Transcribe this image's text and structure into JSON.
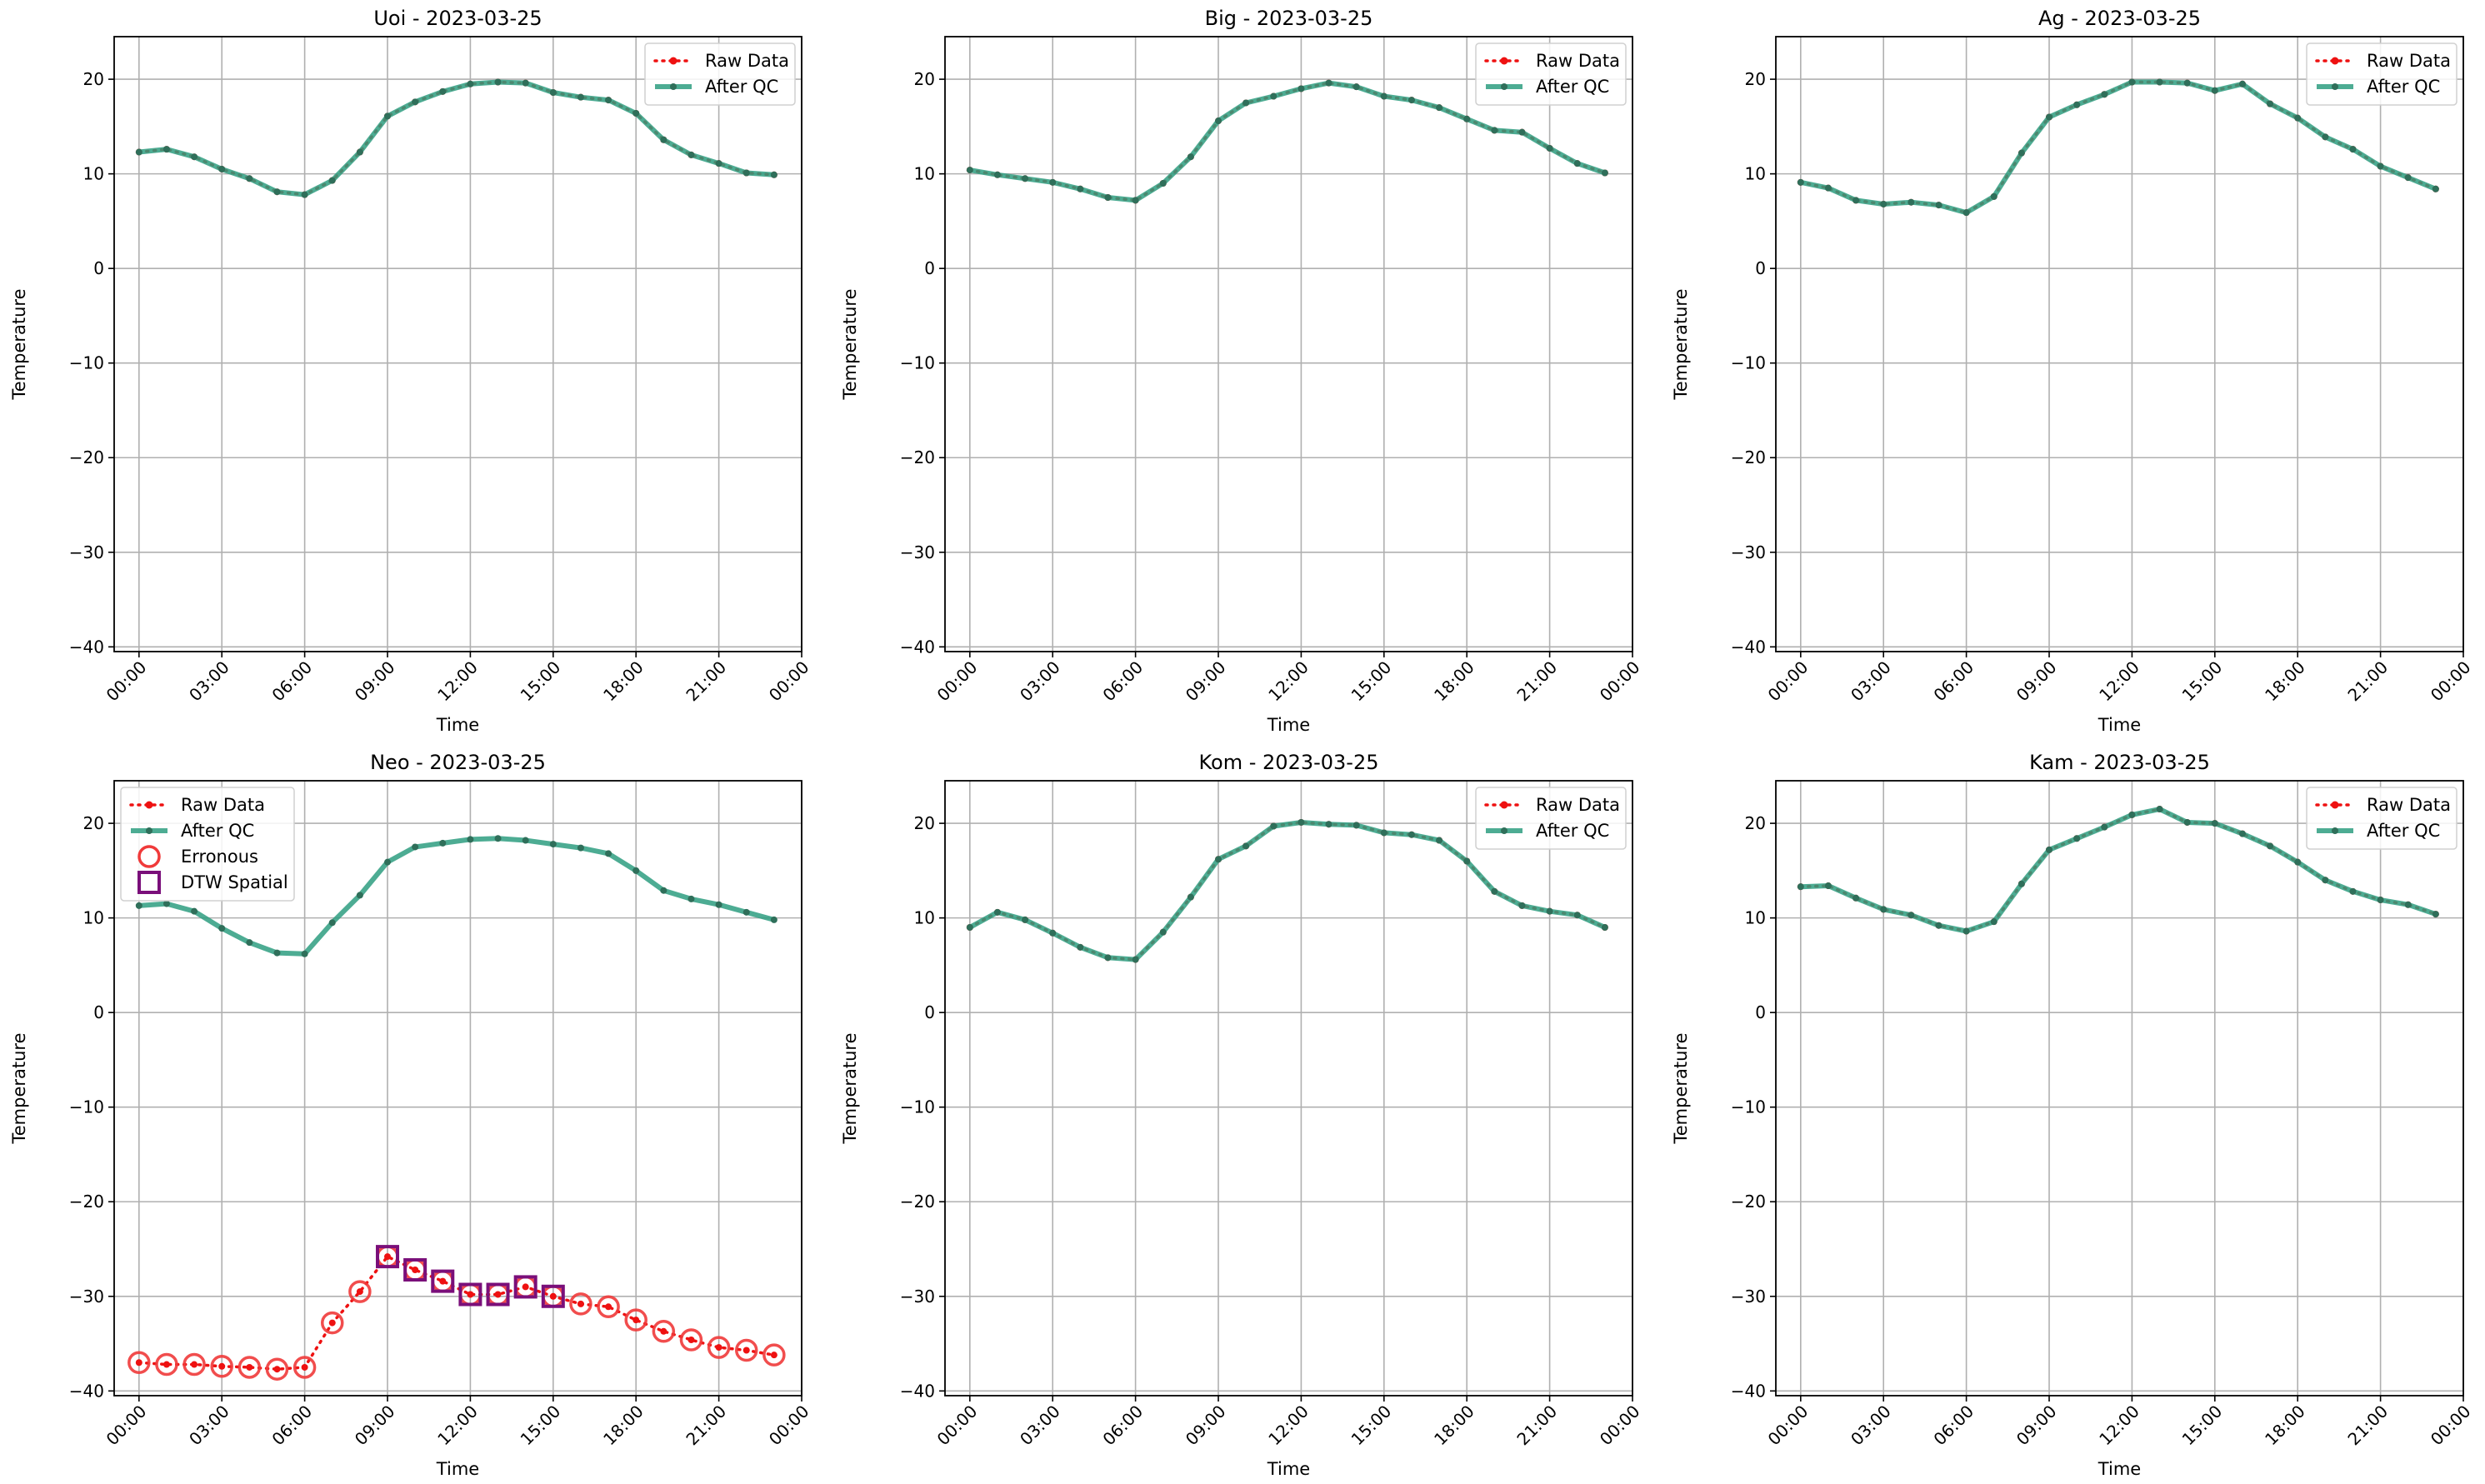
{
  "figure": {
    "colors": {
      "raw": "#ee1111",
      "qc": "#2e9e80",
      "qc_marker": "#2f6f5a",
      "erroneous": "#f03a3a",
      "dtw": "#7a0f7a",
      "grid": "#b0b0b0"
    }
  },
  "chart_data": [
    {
      "type": "line",
      "title": "Uoi - 2023-03-25",
      "xlabel": "Time",
      "ylabel": "Temperature",
      "xlim": [
        -0.9,
        24.0
      ],
      "ylim": [
        -40.5,
        24.5
      ],
      "x_ticks": [
        0,
        3,
        6,
        9,
        12,
        15,
        18,
        21,
        24
      ],
      "x_tick_labels": [
        "00:00",
        "03:00",
        "06:00",
        "09:00",
        "12:00",
        "15:00",
        "18:00",
        "21:00",
        "00:00"
      ],
      "y_ticks": [
        20,
        10,
        0,
        -10,
        -20,
        -30,
        -40
      ],
      "y_tick_labels": [
        "20",
        "10",
        "0",
        "−10",
        "−20",
        "−30",
        "−40"
      ],
      "grid": true,
      "legend": {
        "position": "top-right",
        "entries": [
          "Raw Data",
          "After QC"
        ]
      },
      "x": [
        0,
        1,
        2,
        3,
        4,
        5,
        6,
        7,
        8,
        9,
        10,
        11,
        12,
        13,
        14,
        15,
        16,
        17,
        18,
        19,
        20,
        21,
        22,
        23
      ],
      "series": [
        {
          "name": "Raw Data",
          "style": "dotted",
          "values": [
            12.3,
            12.6,
            11.8,
            10.5,
            9.5,
            8.1,
            7.8,
            9.3,
            12.3,
            16.1,
            17.6,
            18.7,
            19.5,
            19.7,
            19.6,
            18.6,
            18.1,
            17.8,
            16.4,
            13.6,
            12.0,
            11.1,
            10.1,
            9.9
          ]
        },
        {
          "name": "After QC",
          "style": "solid",
          "values": [
            12.3,
            12.6,
            11.8,
            10.5,
            9.5,
            8.1,
            7.8,
            9.3,
            12.3,
            16.1,
            17.6,
            18.7,
            19.5,
            19.7,
            19.6,
            18.6,
            18.1,
            17.8,
            16.4,
            13.6,
            12.0,
            11.1,
            10.1,
            9.9
          ]
        }
      ]
    },
    {
      "type": "line",
      "title": "Big - 2023-03-25",
      "xlabel": "Time",
      "ylabel": "Temperature",
      "xlim": [
        -0.9,
        24.0
      ],
      "ylim": [
        -40.5,
        24.5
      ],
      "x_ticks": [
        0,
        3,
        6,
        9,
        12,
        15,
        18,
        21,
        24
      ],
      "x_tick_labels": [
        "00:00",
        "03:00",
        "06:00",
        "09:00",
        "12:00",
        "15:00",
        "18:00",
        "21:00",
        "00:00"
      ],
      "y_ticks": [
        20,
        10,
        0,
        -10,
        -20,
        -30,
        -40
      ],
      "y_tick_labels": [
        "20",
        "10",
        "0",
        "−10",
        "−20",
        "−30",
        "−40"
      ],
      "grid": true,
      "legend": {
        "position": "top-right",
        "entries": [
          "Raw Data",
          "After QC"
        ]
      },
      "x": [
        0,
        1,
        2,
        3,
        4,
        5,
        6,
        7,
        8,
        9,
        10,
        11,
        12,
        13,
        14,
        15,
        16,
        17,
        18,
        19,
        20,
        21,
        22,
        23
      ],
      "series": [
        {
          "name": "Raw Data",
          "style": "dotted",
          "values": [
            10.4,
            9.9,
            9.5,
            9.1,
            8.4,
            7.5,
            7.2,
            9.0,
            11.8,
            15.6,
            17.5,
            18.2,
            19.0,
            19.6,
            19.2,
            18.2,
            17.8,
            17.0,
            15.8,
            14.6,
            14.4,
            12.7,
            11.1,
            10.1
          ]
        },
        {
          "name": "After QC",
          "style": "solid",
          "values": [
            10.4,
            9.9,
            9.5,
            9.1,
            8.4,
            7.5,
            7.2,
            9.0,
            11.8,
            15.6,
            17.5,
            18.2,
            19.0,
            19.6,
            19.2,
            18.2,
            17.8,
            17.0,
            15.8,
            14.6,
            14.4,
            12.7,
            11.1,
            10.1
          ]
        }
      ]
    },
    {
      "type": "line",
      "title": "Ag - 2023-03-25",
      "xlabel": "Time",
      "ylabel": "Temperature",
      "xlim": [
        -0.9,
        24.0
      ],
      "ylim": [
        -40.5,
        24.5
      ],
      "x_ticks": [
        0,
        3,
        6,
        9,
        12,
        15,
        18,
        21,
        24
      ],
      "x_tick_labels": [
        "00:00",
        "03:00",
        "06:00",
        "09:00",
        "12:00",
        "15:00",
        "18:00",
        "21:00",
        "00:00"
      ],
      "y_ticks": [
        20,
        10,
        0,
        -10,
        -20,
        -30,
        -40
      ],
      "y_tick_labels": [
        "20",
        "10",
        "0",
        "−10",
        "−20",
        "−30",
        "−40"
      ],
      "grid": true,
      "legend": {
        "position": "top-right",
        "entries": [
          "Raw Data",
          "After QC"
        ]
      },
      "x": [
        0,
        1,
        2,
        3,
        4,
        5,
        6,
        7,
        8,
        9,
        10,
        11,
        12,
        13,
        14,
        15,
        16,
        17,
        18,
        19,
        20,
        21,
        22,
        23
      ],
      "series": [
        {
          "name": "Raw Data",
          "style": "dotted",
          "values": [
            9.1,
            8.5,
            7.2,
            6.8,
            7.0,
            6.7,
            5.9,
            7.6,
            12.2,
            16.0,
            17.3,
            18.4,
            19.7,
            19.7,
            19.6,
            18.8,
            19.5,
            17.4,
            15.9,
            13.9,
            12.6,
            10.8,
            9.6,
            8.4
          ]
        },
        {
          "name": "After QC",
          "style": "solid",
          "values": [
            9.1,
            8.5,
            7.2,
            6.8,
            7.0,
            6.7,
            5.9,
            7.6,
            12.2,
            16.0,
            17.3,
            18.4,
            19.7,
            19.7,
            19.6,
            18.8,
            19.5,
            17.4,
            15.9,
            13.9,
            12.6,
            10.8,
            9.6,
            8.4
          ]
        }
      ]
    },
    {
      "type": "line",
      "title": "Neo - 2023-03-25",
      "xlabel": "Time",
      "ylabel": "Temperature",
      "xlim": [
        -0.9,
        24.0
      ],
      "ylim": [
        -40.5,
        24.5
      ],
      "x_ticks": [
        0,
        3,
        6,
        9,
        12,
        15,
        18,
        21,
        24
      ],
      "x_tick_labels": [
        "00:00",
        "03:00",
        "06:00",
        "09:00",
        "12:00",
        "15:00",
        "18:00",
        "21:00",
        "00:00"
      ],
      "y_ticks": [
        20,
        10,
        0,
        -10,
        -20,
        -30,
        -40
      ],
      "y_tick_labels": [
        "20",
        "10",
        "0",
        "−10",
        "−20",
        "−30",
        "−40"
      ],
      "grid": true,
      "legend": {
        "position": "top-left",
        "entries": [
          "Raw Data",
          "After QC",
          "Erronous",
          "DTW Spatial"
        ]
      },
      "x": [
        0,
        1,
        2,
        3,
        4,
        5,
        6,
        7,
        8,
        9,
        10,
        11,
        12,
        13,
        14,
        15,
        16,
        17,
        18,
        19,
        20,
        21,
        22,
        23
      ],
      "series": [
        {
          "name": "Raw Data",
          "style": "dotted",
          "values": [
            -37.0,
            -37.2,
            -37.2,
            -37.4,
            -37.5,
            -37.7,
            -37.5,
            -32.8,
            -29.5,
            -25.8,
            -27.2,
            -28.4,
            -29.8,
            -29.8,
            -29.0,
            -30.0,
            -30.8,
            -31.1,
            -32.5,
            -33.7,
            -34.6,
            -35.4,
            -35.7,
            -36.2
          ]
        },
        {
          "name": "After QC",
          "style": "solid",
          "values": [
            11.3,
            11.5,
            10.7,
            8.9,
            7.4,
            6.3,
            6.2,
            9.5,
            12.4,
            15.9,
            17.5,
            17.9,
            18.3,
            18.4,
            18.2,
            17.8,
            17.4,
            16.8,
            15.0,
            12.9,
            12.0,
            11.4,
            10.6,
            9.8
          ]
        },
        {
          "name": "Erronous",
          "style": "circle-markers",
          "x": [
            0,
            1,
            2,
            3,
            4,
            5,
            6,
            7,
            8,
            9,
            10,
            11,
            12,
            13,
            14,
            15,
            16,
            17,
            18,
            19,
            20,
            21,
            22,
            23
          ],
          "values": [
            -37.0,
            -37.2,
            -37.2,
            -37.4,
            -37.5,
            -37.7,
            -37.5,
            -32.8,
            -29.5,
            -25.8,
            -27.2,
            -28.4,
            -29.8,
            -29.8,
            -29.0,
            -30.0,
            -30.8,
            -31.1,
            -32.5,
            -33.7,
            -34.6,
            -35.4,
            -35.7,
            -36.2
          ]
        },
        {
          "name": "DTW Spatial",
          "style": "square-markers",
          "x": [
            9,
            10,
            11,
            12,
            13,
            14,
            15
          ],
          "values": [
            -25.8,
            -27.2,
            -28.4,
            -29.8,
            -29.8,
            -29.0,
            -30.0
          ]
        }
      ]
    },
    {
      "type": "line",
      "title": "Kom - 2023-03-25",
      "xlabel": "Time",
      "ylabel": "Temperature",
      "xlim": [
        -0.9,
        24.0
      ],
      "ylim": [
        -40.5,
        24.5
      ],
      "x_ticks": [
        0,
        3,
        6,
        9,
        12,
        15,
        18,
        21,
        24
      ],
      "x_tick_labels": [
        "00:00",
        "03:00",
        "06:00",
        "09:00",
        "12:00",
        "15:00",
        "18:00",
        "21:00",
        "00:00"
      ],
      "y_ticks": [
        20,
        10,
        0,
        -10,
        -20,
        -30,
        -40
      ],
      "y_tick_labels": [
        "20",
        "10",
        "0",
        "−10",
        "−20",
        "−30",
        "−40"
      ],
      "grid": true,
      "legend": {
        "position": "top-right",
        "entries": [
          "Raw Data",
          "After QC"
        ]
      },
      "x": [
        0,
        1,
        2,
        3,
        4,
        5,
        6,
        7,
        8,
        9,
        10,
        11,
        12,
        13,
        14,
        15,
        16,
        17,
        18,
        19,
        20,
        21,
        22,
        23
      ],
      "series": [
        {
          "name": "Raw Data",
          "style": "dotted",
          "values": [
            9.0,
            10.6,
            9.8,
            8.4,
            6.9,
            5.8,
            5.6,
            8.5,
            12.2,
            16.2,
            17.6,
            19.7,
            20.1,
            19.9,
            19.8,
            19.0,
            18.8,
            18.2,
            16.0,
            12.8,
            11.3,
            10.7,
            10.3,
            9.0
          ]
        },
        {
          "name": "After QC",
          "style": "solid",
          "values": [
            9.0,
            10.6,
            9.8,
            8.4,
            6.9,
            5.8,
            5.6,
            8.5,
            12.2,
            16.2,
            17.6,
            19.7,
            20.1,
            19.9,
            19.8,
            19.0,
            18.8,
            18.2,
            16.0,
            12.8,
            11.3,
            10.7,
            10.3,
            9.0
          ]
        }
      ]
    },
    {
      "type": "line",
      "title": "Kam - 2023-03-25",
      "xlabel": "Time",
      "ylabel": "Temperature",
      "xlim": [
        -0.9,
        24.0
      ],
      "ylim": [
        -40.5,
        24.5
      ],
      "x_ticks": [
        0,
        3,
        6,
        9,
        12,
        15,
        18,
        21,
        24
      ],
      "x_tick_labels": [
        "00:00",
        "03:00",
        "06:00",
        "09:00",
        "12:00",
        "15:00",
        "18:00",
        "21:00",
        "00:00"
      ],
      "y_ticks": [
        20,
        10,
        0,
        -10,
        -20,
        -30,
        -40
      ],
      "y_tick_labels": [
        "20",
        "10",
        "0",
        "−10",
        "−20",
        "−30",
        "−40"
      ],
      "grid": true,
      "legend": {
        "position": "top-right",
        "entries": [
          "Raw Data",
          "After QC"
        ]
      },
      "x": [
        0,
        1,
        2,
        3,
        4,
        5,
        6,
        7,
        8,
        9,
        10,
        11,
        12,
        13,
        14,
        15,
        16,
        17,
        18,
        19,
        20,
        21,
        22,
        23
      ],
      "series": [
        {
          "name": "Raw Data",
          "style": "dotted",
          "values": [
            13.3,
            13.4,
            12.1,
            10.9,
            10.3,
            9.2,
            8.6,
            9.6,
            13.6,
            17.2,
            18.4,
            19.6,
            20.9,
            21.5,
            20.1,
            20.0,
            18.9,
            17.6,
            15.9,
            14.0,
            12.8,
            11.9,
            11.4,
            10.4
          ]
        },
        {
          "name": "After QC",
          "style": "solid",
          "values": [
            13.3,
            13.4,
            12.1,
            10.9,
            10.3,
            9.2,
            8.6,
            9.6,
            13.6,
            17.2,
            18.4,
            19.6,
            20.9,
            21.5,
            20.1,
            20.0,
            18.9,
            17.6,
            15.9,
            14.0,
            12.8,
            11.9,
            11.4,
            10.4
          ]
        }
      ]
    }
  ]
}
